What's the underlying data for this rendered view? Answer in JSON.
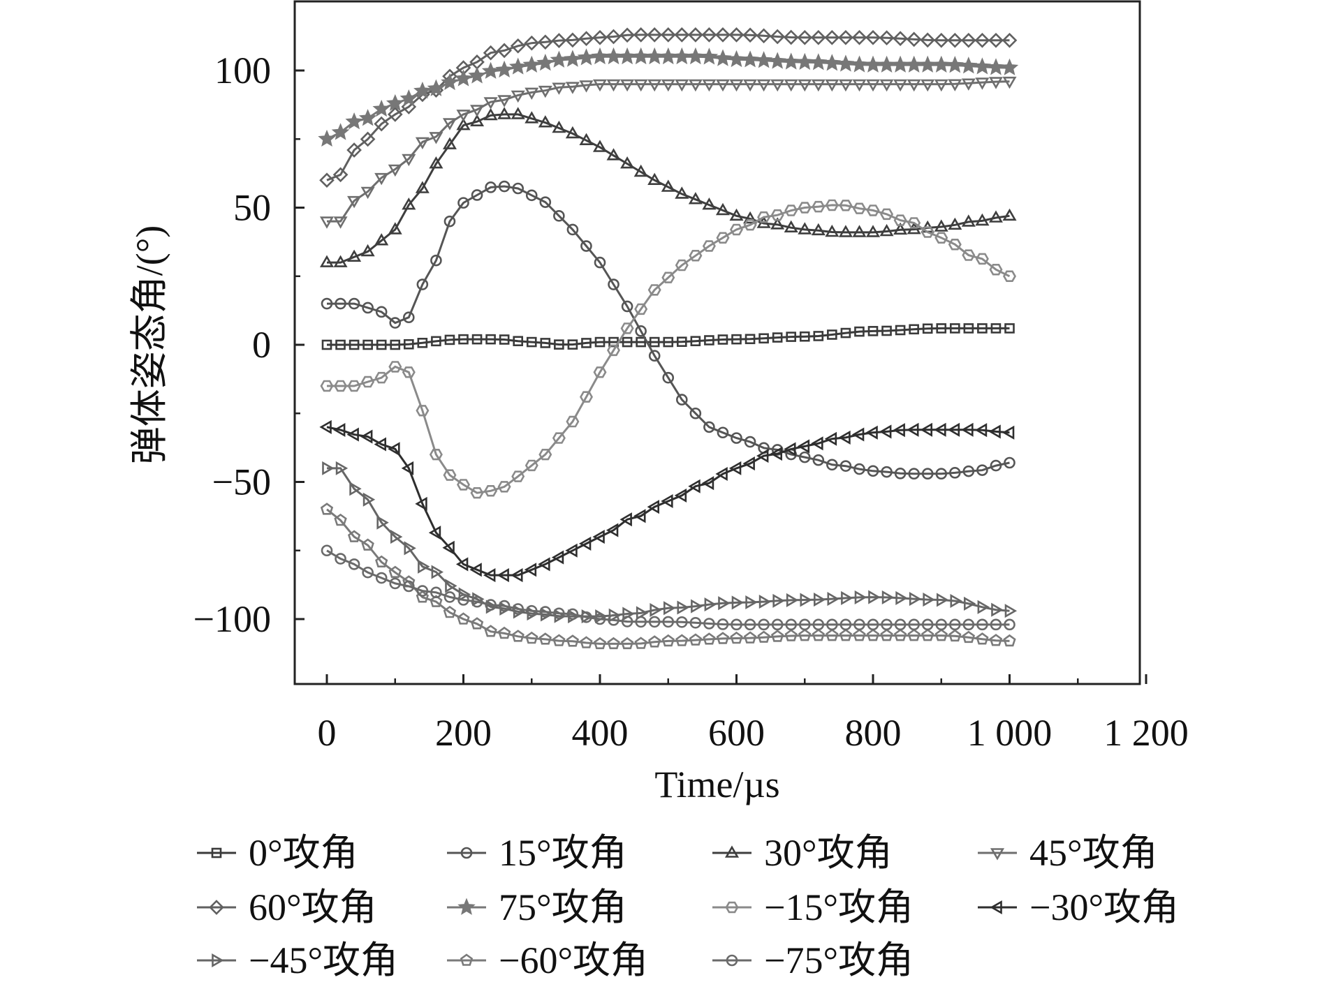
{
  "chart_data": {
    "type": "line",
    "title": "",
    "xlabel": "Time/µs",
    "ylabel": "弹体姿态角/(°)",
    "xlim": [
      -50,
      1200
    ],
    "ylim": [
      -125,
      125
    ],
    "xticks": [
      0,
      200,
      400,
      600,
      800,
      1000,
      1200
    ],
    "xtick_labels": [
      "0",
      "200",
      "400",
      "600",
      "800",
      "1 000",
      "1 200"
    ],
    "yticks": [
      -100,
      -50,
      0,
      50,
      100
    ],
    "ytick_labels": [
      "−100",
      "−50",
      "0",
      "50",
      "100"
    ],
    "legend_position": "bottom",
    "series": [
      {
        "name": "0°攻角",
        "marker": "square",
        "color": "#3a3a3a",
        "points": [
          [
            0,
            0
          ],
          [
            100,
            0
          ],
          [
            200,
            2
          ],
          [
            250,
            2
          ],
          [
            300,
            1
          ],
          [
            350,
            0
          ],
          [
            400,
            1
          ],
          [
            500,
            1
          ],
          [
            600,
            2
          ],
          [
            700,
            3
          ],
          [
            800,
            5
          ],
          [
            900,
            6
          ],
          [
            1000,
            6
          ]
        ]
      },
      {
        "name": "15°攻角",
        "marker": "circle",
        "color": "#555555",
        "points": [
          [
            0,
            15
          ],
          [
            40,
            15
          ],
          [
            80,
            12
          ],
          [
            100,
            8
          ],
          [
            120,
            10
          ],
          [
            150,
            26
          ],
          [
            180,
            45
          ],
          [
            210,
            54
          ],
          [
            250,
            58
          ],
          [
            280,
            57
          ],
          [
            320,
            52
          ],
          [
            360,
            42
          ],
          [
            400,
            30
          ],
          [
            440,
            14
          ],
          [
            480,
            -4
          ],
          [
            520,
            -20
          ],
          [
            560,
            -30
          ],
          [
            600,
            -34
          ],
          [
            650,
            -38
          ],
          [
            700,
            -41
          ],
          [
            750,
            -44
          ],
          [
            800,
            -46
          ],
          [
            850,
            -47
          ],
          [
            900,
            -47
          ],
          [
            950,
            -46
          ],
          [
            1000,
            -43
          ]
        ]
      },
      {
        "name": "30°攻角",
        "marker": "triangle-up",
        "color": "#3e3e3e",
        "points": [
          [
            0,
            30
          ],
          [
            20,
            30
          ],
          [
            60,
            34
          ],
          [
            100,
            42
          ],
          [
            130,
            54
          ],
          [
            160,
            66
          ],
          [
            200,
            80
          ],
          [
            250,
            84
          ],
          [
            280,
            84
          ],
          [
            320,
            81
          ],
          [
            360,
            77
          ],
          [
            400,
            72
          ],
          [
            440,
            66
          ],
          [
            480,
            60
          ],
          [
            520,
            55
          ],
          [
            560,
            51
          ],
          [
            600,
            47
          ],
          [
            650,
            44
          ],
          [
            700,
            42
          ],
          [
            750,
            41
          ],
          [
            800,
            41
          ],
          [
            850,
            42
          ],
          [
            900,
            43
          ],
          [
            950,
            45
          ],
          [
            1000,
            47
          ]
        ]
      },
      {
        "name": "45°攻角",
        "marker": "triangle-down",
        "color": "#6e6e6e",
        "points": [
          [
            0,
            45
          ],
          [
            20,
            45
          ],
          [
            50,
            55
          ],
          [
            100,
            64
          ],
          [
            150,
            75
          ],
          [
            200,
            84
          ],
          [
            250,
            89
          ],
          [
            300,
            92
          ],
          [
            350,
            94
          ],
          [
            400,
            95
          ],
          [
            500,
            95
          ],
          [
            600,
            95
          ],
          [
            700,
            95
          ],
          [
            800,
            95
          ],
          [
            900,
            95
          ],
          [
            1000,
            96
          ]
        ]
      },
      {
        "name": "60°攻角",
        "marker": "diamond",
        "color": "#606060",
        "points": [
          [
            0,
            60
          ],
          [
            20,
            62
          ],
          [
            50,
            74
          ],
          [
            100,
            84
          ],
          [
            150,
            92
          ],
          [
            200,
            101
          ],
          [
            250,
            107
          ],
          [
            300,
            110
          ],
          [
            350,
            111
          ],
          [
            400,
            112
          ],
          [
            450,
            113
          ],
          [
            500,
            113
          ],
          [
            550,
            113
          ],
          [
            600,
            113
          ],
          [
            700,
            112
          ],
          [
            800,
            112
          ],
          [
            900,
            111
          ],
          [
            1000,
            111
          ]
        ]
      },
      {
        "name": "75°攻角",
        "marker": "star",
        "color": "#777777",
        "points": [
          [
            0,
            75
          ],
          [
            50,
            82
          ],
          [
            100,
            88
          ],
          [
            150,
            93
          ],
          [
            200,
            97
          ],
          [
            250,
            100
          ],
          [
            300,
            102
          ],
          [
            350,
            104
          ],
          [
            400,
            105
          ],
          [
            450,
            105
          ],
          [
            500,
            105
          ],
          [
            550,
            105
          ],
          [
            600,
            104
          ],
          [
            700,
            103
          ],
          [
            800,
            102
          ],
          [
            900,
            102
          ],
          [
            1000,
            101
          ]
        ]
      },
      {
        "name": "−15°攻角",
        "marker": "hexagon",
        "color": "#8a8a8a",
        "points": [
          [
            0,
            -15
          ],
          [
            40,
            -15
          ],
          [
            80,
            -12
          ],
          [
            100,
            -8
          ],
          [
            120,
            -10
          ],
          [
            140,
            -24
          ],
          [
            160,
            -40
          ],
          [
            190,
            -50
          ],
          [
            220,
            -54
          ],
          [
            250,
            -53
          ],
          [
            280,
            -48
          ],
          [
            320,
            -40
          ],
          [
            360,
            -28
          ],
          [
            400,
            -10
          ],
          [
            440,
            6
          ],
          [
            480,
            20
          ],
          [
            520,
            29
          ],
          [
            560,
            36
          ],
          [
            600,
            42
          ],
          [
            650,
            47
          ],
          [
            700,
            50
          ],
          [
            750,
            51
          ],
          [
            800,
            49
          ],
          [
            850,
            45
          ],
          [
            900,
            39
          ],
          [
            950,
            32
          ],
          [
            1000,
            25
          ]
        ]
      },
      {
        "name": "−30°攻角",
        "marker": "triangle-left",
        "color": "#2e2e2e",
        "points": [
          [
            0,
            -30
          ],
          [
            50,
            -33
          ],
          [
            100,
            -38
          ],
          [
            120,
            -45
          ],
          [
            140,
            -58
          ],
          [
            170,
            -72
          ],
          [
            200,
            -80
          ],
          [
            240,
            -84
          ],
          [
            280,
            -84
          ],
          [
            320,
            -80
          ],
          [
            360,
            -75
          ],
          [
            400,
            -70
          ],
          [
            450,
            -63
          ],
          [
            500,
            -57
          ],
          [
            550,
            -51
          ],
          [
            600,
            -45
          ],
          [
            650,
            -40
          ],
          [
            700,
            -37
          ],
          [
            750,
            -34
          ],
          [
            800,
            -32
          ],
          [
            850,
            -31
          ],
          [
            900,
            -31
          ],
          [
            950,
            -31
          ],
          [
            1000,
            -32
          ]
        ]
      },
      {
        "name": "−45°攻角",
        "marker": "triangle-right",
        "color": "#666666",
        "points": [
          [
            0,
            -45
          ],
          [
            20,
            -45
          ],
          [
            50,
            -55
          ],
          [
            100,
            -70
          ],
          [
            150,
            -82
          ],
          [
            200,
            -91
          ],
          [
            250,
            -96
          ],
          [
            300,
            -98
          ],
          [
            350,
            -99
          ],
          [
            400,
            -99
          ],
          [
            450,
            -98
          ],
          [
            500,
            -96
          ],
          [
            600,
            -94
          ],
          [
            700,
            -93
          ],
          [
            800,
            -92
          ],
          [
            900,
            -93
          ],
          [
            1000,
            -97
          ]
        ]
      },
      {
        "name": "−60°攻角",
        "marker": "pentagon",
        "color": "#7a7a7a",
        "points": [
          [
            0,
            -60
          ],
          [
            20,
            -64
          ],
          [
            50,
            -72
          ],
          [
            100,
            -83
          ],
          [
            150,
            -93
          ],
          [
            200,
            -100
          ],
          [
            250,
            -105
          ],
          [
            300,
            -107
          ],
          [
            350,
            -108
          ],
          [
            400,
            -109
          ],
          [
            450,
            -109
          ],
          [
            500,
            -108
          ],
          [
            600,
            -107
          ],
          [
            700,
            -106
          ],
          [
            800,
            -106
          ],
          [
            900,
            -106
          ],
          [
            1000,
            -108
          ]
        ]
      },
      {
        "name": "−75°攻角",
        "marker": "circle-dot",
        "color": "#6a6a6a",
        "points": [
          [
            0,
            -75
          ],
          [
            30,
            -79
          ],
          [
            60,
            -83
          ],
          [
            100,
            -87
          ],
          [
            150,
            -90
          ],
          [
            200,
            -93
          ],
          [
            250,
            -95
          ],
          [
            300,
            -97
          ],
          [
            350,
            -98
          ],
          [
            400,
            -100
          ],
          [
            450,
            -101
          ],
          [
            500,
            -101
          ],
          [
            600,
            -102
          ],
          [
            700,
            -102
          ],
          [
            800,
            -102
          ],
          [
            900,
            -102
          ],
          [
            1000,
            -102
          ]
        ]
      }
    ]
  }
}
